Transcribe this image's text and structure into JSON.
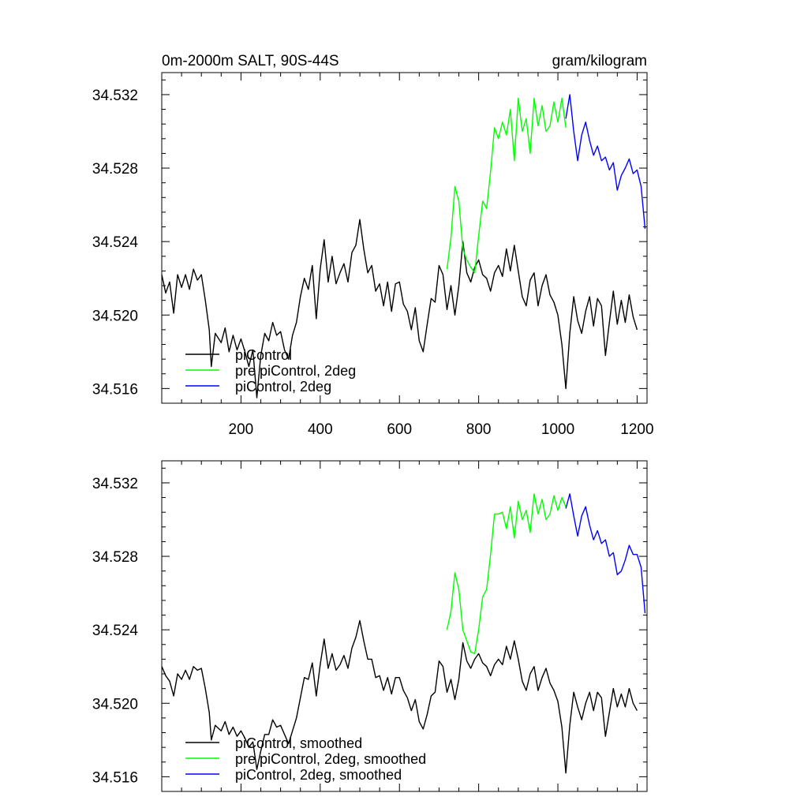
{
  "chart_data": [
    {
      "type": "line",
      "title": "0m-2000m SALT, 90S-44S",
      "units": "gram/kilogram",
      "xlim": [
        0,
        1225
      ],
      "ylim": [
        34.5152,
        34.5332
      ],
      "xticks": [
        200,
        400,
        600,
        800,
        1000,
        1200
      ],
      "xtick_labels": [
        "200",
        "400",
        "600",
        "800",
        "1000",
        "1200"
      ],
      "yticks": [
        34.516,
        34.52,
        34.524,
        34.528,
        34.532
      ],
      "ytick_labels": [
        "34.516",
        "34.520",
        "34.524",
        "34.528",
        "34.532"
      ],
      "legend_position": "bottom-left",
      "series": [
        {
          "name": "piControl",
          "color": "#000000",
          "x": [
            0,
            10,
            20,
            30,
            40,
            50,
            60,
            70,
            80,
            90,
            100,
            110,
            120,
            125,
            135,
            150,
            160,
            170,
            180,
            190,
            200,
            210,
            220,
            230,
            240,
            250,
            260,
            270,
            280,
            290,
            300,
            310,
            320,
            330,
            340,
            350,
            360,
            370,
            380,
            390,
            400,
            410,
            420,
            430,
            440,
            450,
            460,
            470,
            480,
            490,
            500,
            510,
            520,
            530,
            540,
            550,
            560,
            570,
            580,
            590,
            600,
            610,
            620,
            630,
            640,
            650,
            660,
            670,
            680,
            690,
            700,
            710,
            720,
            730,
            740,
            750,
            760,
            770,
            780,
            790,
            800,
            810,
            820,
            830,
            840,
            850,
            860,
            870,
            880,
            890,
            900,
            910,
            920,
            930,
            940,
            950,
            960,
            970,
            980,
            990,
            1000,
            1010,
            1020,
            1030,
            1040,
            1050,
            1060,
            1070,
            1080,
            1090,
            1100,
            1110,
            1120,
            1130,
            1140,
            1150,
            1160,
            1170,
            1180,
            1190,
            1200
          ],
          "y": [
            34.5222,
            34.5212,
            34.5218,
            34.5201,
            34.5222,
            34.5215,
            34.5222,
            34.5214,
            34.5225,
            34.5219,
            34.5222,
            34.5208,
            34.5192,
            34.5172,
            34.519,
            34.5185,
            34.5193,
            34.518,
            34.5189,
            34.5181,
            34.5187,
            34.518,
            34.5172,
            34.5181,
            34.5155,
            34.5178,
            34.519,
            34.5186,
            34.5196,
            34.5189,
            34.5191,
            34.5181,
            34.5176,
            34.5189,
            34.5196,
            34.521,
            34.522,
            34.5214,
            34.5227,
            34.5198,
            34.5225,
            34.5241,
            34.5218,
            34.5232,
            34.5217,
            34.5223,
            34.5228,
            34.5218,
            34.5234,
            34.5238,
            34.5252,
            34.5236,
            34.5223,
            34.5227,
            34.5213,
            34.5217,
            34.5205,
            34.5218,
            34.5202,
            34.5217,
            34.5218,
            34.5206,
            34.5202,
            34.5192,
            34.5204,
            34.5186,
            34.518,
            34.5195,
            34.5209,
            34.5207,
            34.5227,
            34.5222,
            34.5203,
            34.5216,
            34.52,
            34.5216,
            34.524,
            34.5223,
            34.5218,
            34.5226,
            34.523,
            34.5222,
            34.522,
            34.5213,
            34.5223,
            34.5227,
            34.5221,
            34.5236,
            34.5224,
            34.5238,
            34.5224,
            34.521,
            34.5205,
            34.5219,
            34.5223,
            34.5205,
            34.5216,
            34.5222,
            34.5211,
            34.5207,
            34.52,
            34.5184,
            34.516,
            34.519,
            34.521,
            34.5197,
            34.519,
            34.5202,
            34.521,
            34.5194,
            34.5209,
            34.5205,
            34.5178,
            34.5196,
            34.5213,
            34.5195,
            34.5208,
            34.5196,
            34.5211,
            34.5199,
            34.5192
          ]
        },
        {
          "name": "pre piControl, 2deg",
          "color": "#00ff00",
          "x": [
            720,
            730,
            740,
            750,
            760,
            770,
            780,
            790,
            800,
            810,
            820,
            830,
            840,
            850,
            860,
            870,
            880,
            890,
            900,
            910,
            920,
            930,
            940,
            950,
            960,
            970,
            980,
            990,
            1000,
            1010,
            1020
          ],
          "y": [
            34.5225,
            34.5242,
            34.527,
            34.5262,
            34.5236,
            34.523,
            34.5226,
            34.5223,
            34.5243,
            34.5262,
            34.5258,
            34.5278,
            34.5302,
            34.5296,
            34.5305,
            34.5298,
            34.5312,
            34.5284,
            34.5318,
            34.53,
            34.5307,
            34.5288,
            34.5318,
            34.5303,
            34.5314,
            34.53,
            34.5303,
            34.5316,
            34.5305,
            34.5318,
            34.5302
          ]
        },
        {
          "name": "piControl, 2deg",
          "color": "#0000ff",
          "x": [
            1020,
            1030,
            1040,
            1050,
            1060,
            1070,
            1080,
            1090,
            1100,
            1110,
            1120,
            1130,
            1140,
            1150,
            1160,
            1170,
            1180,
            1190,
            1200,
            1210,
            1220
          ],
          "y": [
            34.5307,
            34.532,
            34.53,
            34.5284,
            34.5298,
            34.5305,
            34.5295,
            34.5287,
            34.5292,
            34.5284,
            34.5286,
            34.5279,
            34.5283,
            34.5268,
            34.5276,
            34.528,
            34.5285,
            34.5277,
            34.5279,
            34.527,
            34.5247
          ]
        }
      ]
    },
    {
      "type": "line",
      "xlim": [
        0,
        1225
      ],
      "ylim": [
        34.5152,
        34.5332
      ],
      "xticks": [
        200,
        400,
        600,
        800,
        1000,
        1200
      ],
      "yticks": [
        34.516,
        34.52,
        34.524,
        34.528,
        34.532
      ],
      "ytick_labels": [
        "34.516",
        "34.520",
        "34.524",
        "34.528",
        "34.532"
      ],
      "legend_position": "bottom-left",
      "series": [
        {
          "name": "piControl, smoothed",
          "color": "#000000",
          "x": [
            0,
            10,
            20,
            30,
            40,
            50,
            60,
            70,
            80,
            90,
            100,
            110,
            120,
            125,
            135,
            150,
            160,
            170,
            180,
            190,
            200,
            210,
            220,
            230,
            240,
            250,
            260,
            270,
            280,
            290,
            300,
            310,
            320,
            330,
            340,
            350,
            360,
            370,
            380,
            390,
            400,
            410,
            420,
            430,
            440,
            450,
            460,
            470,
            480,
            490,
            500,
            510,
            520,
            530,
            540,
            550,
            560,
            570,
            580,
            590,
            600,
            610,
            620,
            630,
            640,
            650,
            660,
            670,
            680,
            690,
            700,
            710,
            720,
            730,
            740,
            750,
            760,
            770,
            780,
            790,
            800,
            810,
            820,
            830,
            840,
            850,
            860,
            870,
            880,
            890,
            900,
            910,
            920,
            930,
            940,
            950,
            960,
            970,
            980,
            990,
            1000,
            1010,
            1020,
            1030,
            1040,
            1050,
            1060,
            1070,
            1080,
            1090,
            1100,
            1110,
            1120,
            1130,
            1140,
            1150,
            1160,
            1170,
            1180,
            1190,
            1200
          ],
          "y": [
            34.522,
            34.5215,
            34.5212,
            34.5204,
            34.5216,
            34.5213,
            34.5218,
            34.5213,
            34.522,
            34.5218,
            34.5219,
            34.5208,
            34.5195,
            34.518,
            34.5188,
            34.5185,
            34.519,
            34.5183,
            34.5187,
            34.5182,
            34.5185,
            34.5181,
            34.5176,
            34.5179,
            34.5164,
            34.5174,
            34.5183,
            34.5183,
            34.5191,
            34.5187,
            34.5188,
            34.5183,
            34.5178,
            34.5185,
            34.5192,
            34.5203,
            34.5214,
            34.5213,
            34.5222,
            34.5204,
            34.5221,
            34.5235,
            34.5219,
            34.5227,
            34.5218,
            34.5221,
            34.5226,
            34.5219,
            34.523,
            34.5236,
            34.5245,
            34.5234,
            34.5224,
            34.5224,
            34.5214,
            34.5215,
            34.5207,
            34.5214,
            34.5205,
            34.5214,
            34.5214,
            34.5207,
            34.5203,
            34.5196,
            34.5202,
            34.519,
            34.5186,
            34.5194,
            34.5204,
            34.5206,
            34.5223,
            34.522,
            34.5206,
            34.5213,
            34.5202,
            34.5213,
            34.5233,
            34.5223,
            34.5219,
            34.5224,
            34.5227,
            34.5222,
            34.522,
            34.5215,
            34.5221,
            34.5224,
            34.5221,
            34.5231,
            34.5224,
            34.5234,
            34.5224,
            34.5212,
            34.5207,
            34.5216,
            34.522,
            34.5207,
            34.5214,
            34.5219,
            34.5211,
            34.5207,
            34.5201,
            34.5187,
            34.5162,
            34.5188,
            34.5206,
            34.5198,
            34.5191,
            34.52,
            34.5206,
            34.5196,
            34.5206,
            34.5203,
            34.5182,
            34.5195,
            34.5208,
            34.5198,
            34.5205,
            34.5198,
            34.5208,
            34.52,
            34.5196
          ]
        },
        {
          "name": "pre piControl, 2deg, smoothed",
          "color": "#00ff00",
          "x": [
            720,
            730,
            740,
            750,
            760,
            770,
            780,
            790,
            800,
            810,
            820,
            830,
            840,
            850,
            860,
            870,
            880,
            890,
            900,
            910,
            920,
            930,
            940,
            950,
            960,
            970,
            980,
            990,
            1000,
            1010,
            1020
          ],
          "y": [
            34.524,
            34.525,
            34.5271,
            34.5262,
            34.524,
            34.5234,
            34.5228,
            34.5227,
            34.524,
            34.5258,
            34.5262,
            34.5281,
            34.5303,
            34.5303,
            34.5304,
            34.5295,
            34.5307,
            34.529,
            34.531,
            34.53,
            34.5305,
            34.5293,
            34.5314,
            34.5303,
            34.5311,
            34.53,
            34.5303,
            34.5313,
            34.5305,
            34.5312,
            34.5307
          ]
        },
        {
          "name": "piControl, 2deg, smoothed",
          "color": "#0000ff",
          "x": [
            1020,
            1030,
            1040,
            1050,
            1060,
            1070,
            1080,
            1090,
            1100,
            1110,
            1120,
            1130,
            1140,
            1150,
            1160,
            1170,
            1180,
            1190,
            1200,
            1210,
            1220
          ],
          "y": [
            34.5306,
            34.5314,
            34.5302,
            34.5291,
            34.5302,
            34.5307,
            34.5297,
            34.5289,
            34.5294,
            34.5287,
            34.5289,
            34.528,
            34.5282,
            34.527,
            34.5272,
            34.5278,
            34.5286,
            34.5281,
            34.5281,
            34.5274,
            34.5249
          ]
        }
      ]
    }
  ]
}
